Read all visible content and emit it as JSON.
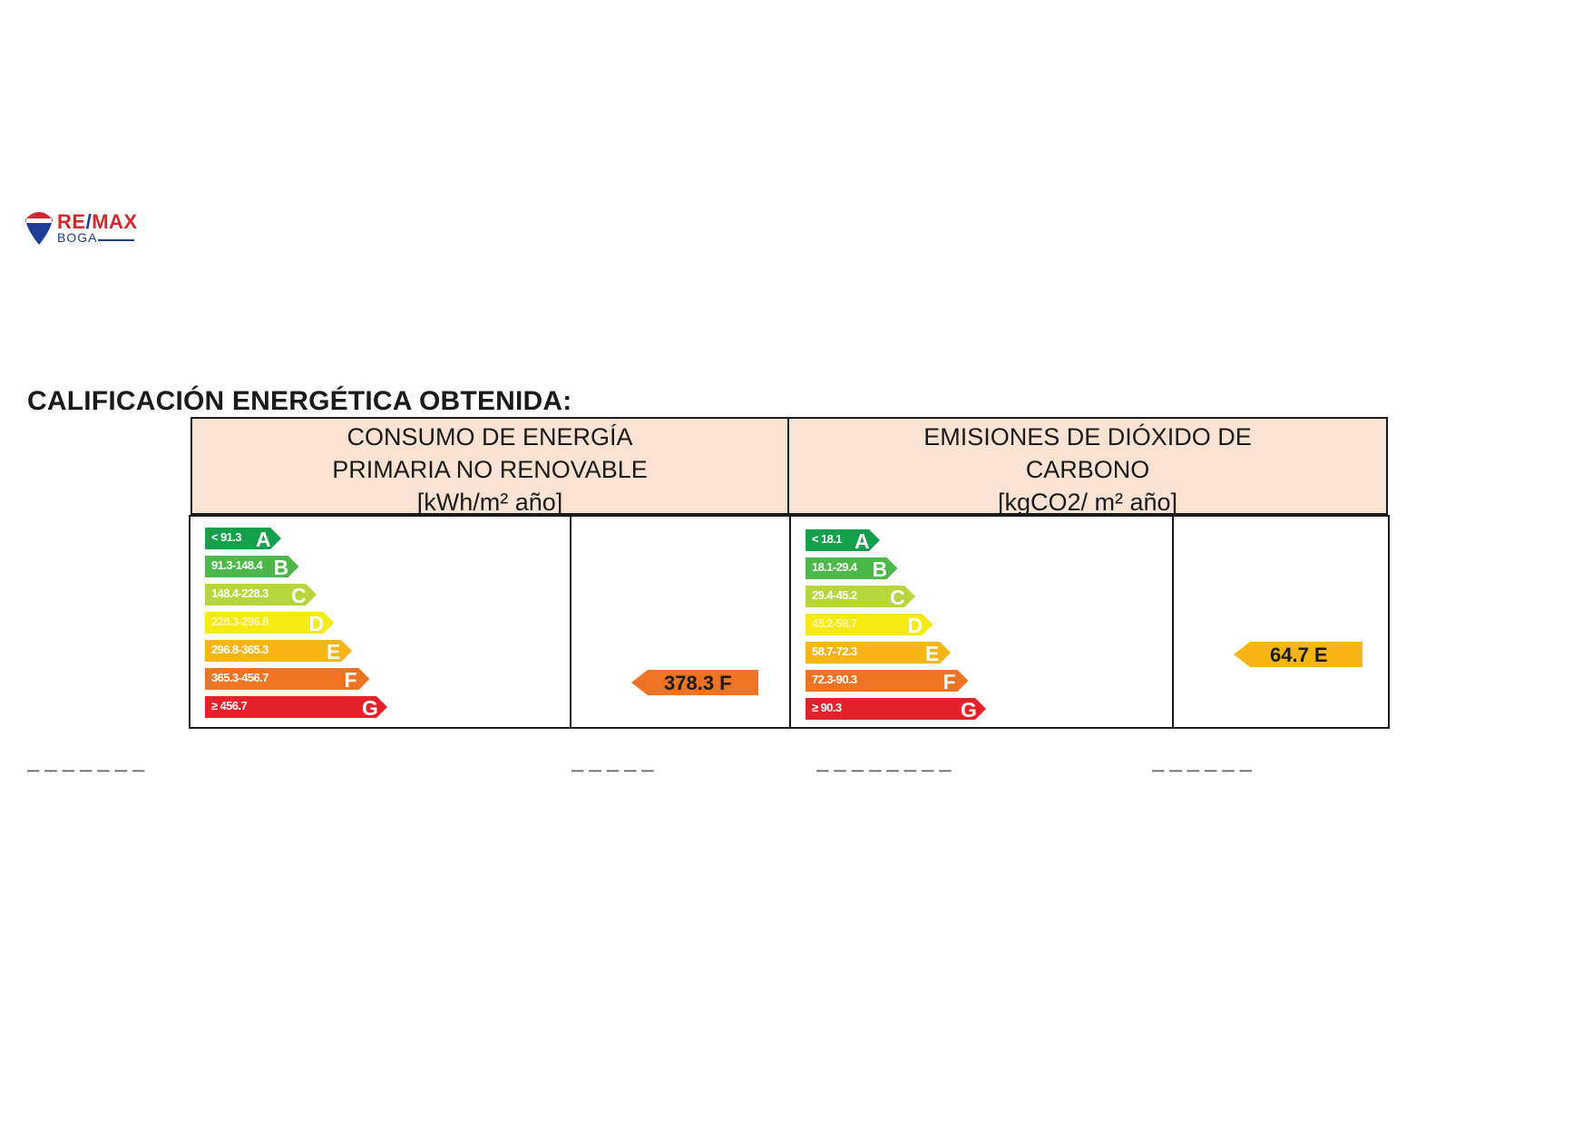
{
  "logo": {
    "brand_re": "RE",
    "brand_slash": "/",
    "brand_max": "MAX",
    "office": "BOGA",
    "colors": {
      "red": "#d6262e",
      "blue": "#1c3f95"
    }
  },
  "heading": "CALIFICACIÓN ENERGÉTICA OBTENIDA:",
  "columns": [
    {
      "header_lines": [
        "CONSUMO DE ENERGÍA",
        "PRIMARIA NO RENOVABLE",
        "[kWh/m² año]"
      ],
      "bars": [
        {
          "range": "< 91.3",
          "letter": "A",
          "color": "#14a04a"
        },
        {
          "range": "91.3-148.4",
          "letter": "B",
          "color": "#4cb849"
        },
        {
          "range": "148.4-228.3",
          "letter": "C",
          "color": "#b6d63b"
        },
        {
          "range": "228.3-296.8",
          "letter": "D",
          "color": "#f4ea14"
        },
        {
          "range": "296.8-365.3",
          "letter": "E",
          "color": "#f7b515"
        },
        {
          "range": "365.3-456.7",
          "letter": "F",
          "color": "#ee7424"
        },
        {
          "range": "≥ 456.7",
          "letter": "G",
          "color": "#e4222c"
        }
      ],
      "rating": {
        "value": "378.3",
        "letter": "F",
        "label": "378.3 F",
        "color": "#ee7424"
      }
    },
    {
      "header_lines": [
        "EMISIONES DE DIÓXIDO DE",
        "CARBONO",
        "[kgCO2/ m² año]"
      ],
      "bars": [
        {
          "range": "< 18.1",
          "letter": "A",
          "color": "#14a04a"
        },
        {
          "range": "18.1-29.4",
          "letter": "B",
          "color": "#4cb849"
        },
        {
          "range": "29.4-45.2",
          "letter": "C",
          "color": "#b6d63b"
        },
        {
          "range": "45.2-58.7",
          "letter": "D",
          "color": "#f4ea14"
        },
        {
          "range": "58.7-72.3",
          "letter": "E",
          "color": "#f7b515"
        },
        {
          "range": "72.3-90.3",
          "letter": "F",
          "color": "#ee7424"
        },
        {
          "range": "≥ 90.3",
          "letter": "G",
          "color": "#e4222c"
        }
      ],
      "rating": {
        "value": "64.7",
        "letter": "E",
        "label": "64.7 E",
        "color": "#f7b515"
      }
    }
  ]
}
